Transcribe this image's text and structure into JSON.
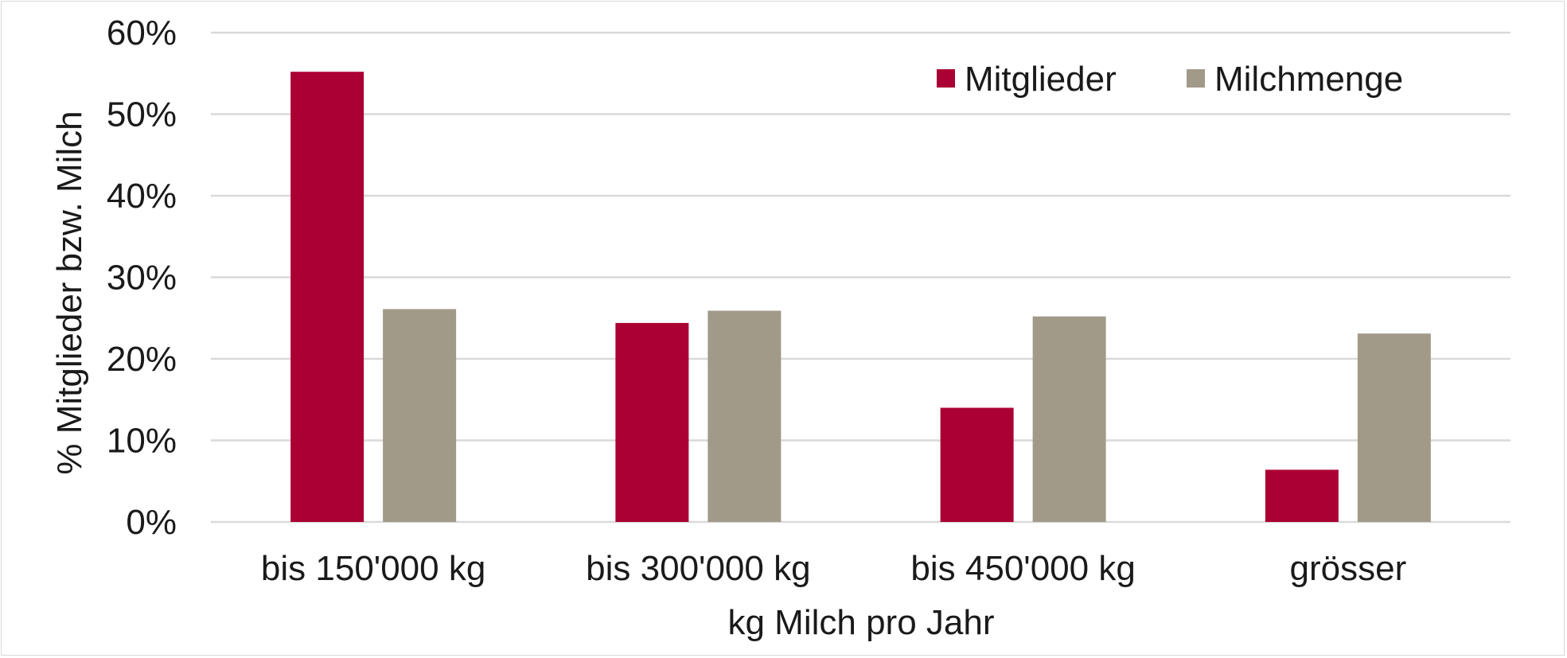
{
  "chart_data": {
    "type": "bar",
    "title": "",
    "xlabel": "kg Milch pro Jahr",
    "ylabel": "% Mitglieder bzw. Milch",
    "categories": [
      "bis 150'000 kg",
      "bis 300'000 kg",
      "bis 450'000 kg",
      "grösser"
    ],
    "series": [
      {
        "name": "Mitglieder",
        "color": "#ab0033",
        "values": [
          55.2,
          24.4,
          14.0,
          6.4
        ]
      },
      {
        "name": "Milchmenge",
        "color": "#a19a89",
        "values": [
          26.1,
          25.9,
          25.2,
          23.1
        ]
      }
    ],
    "ylim": [
      0,
      60
    ],
    "yticks": [
      0,
      10,
      20,
      30,
      40,
      50,
      60
    ],
    "ytick_labels": [
      "0%",
      "10%",
      "20%",
      "30%",
      "40%",
      "50%",
      "60%"
    ],
    "grid": true,
    "legend_position": "top-right",
    "colors": {
      "gridline": "#d9d9d9",
      "text": "#1a1a1a"
    }
  }
}
